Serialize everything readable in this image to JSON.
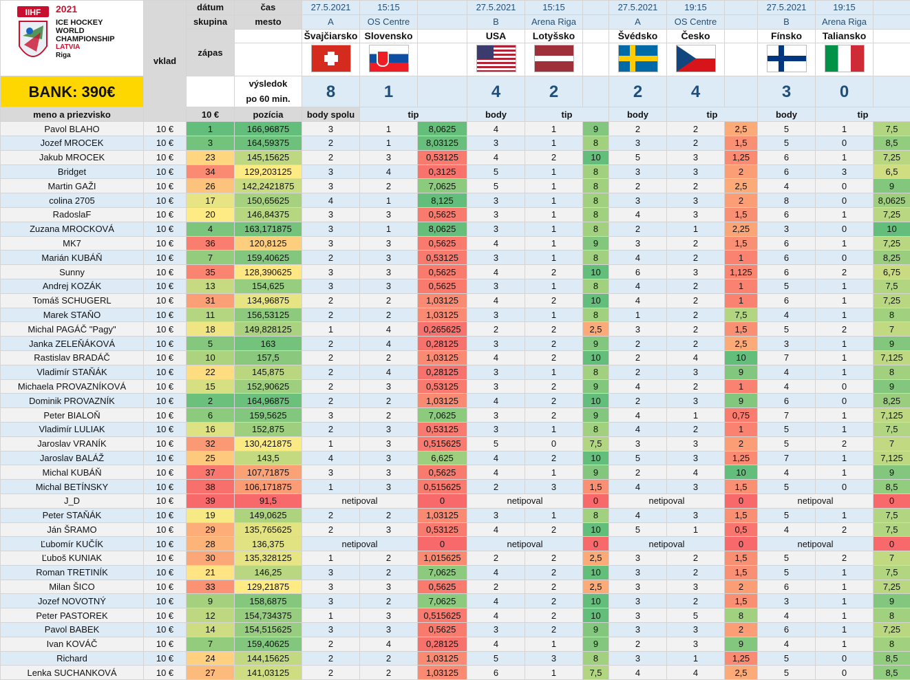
{
  "logo": {
    "iihf": "IIHF",
    "year": "2021",
    "line1": "ICE HOCKEY",
    "line2": "WORLD",
    "line3": "CHAMPIONSHIP",
    "line4": "LATVIA",
    "line5": "Riga"
  },
  "bank": "BANK: 390€",
  "headers": {
    "datum": "dátum",
    "cas": "čas",
    "skupina": "skupina",
    "mesto": "mesto",
    "vklad": "vklad",
    "zapas": "zápas",
    "vysledok": "výsledok",
    "po60": "po 60 min.",
    "meno": "meno a priezvisko",
    "vklad_val": "10 €",
    "pozicia": "pozícia",
    "body_spolu": "body spolu",
    "tip": "tip",
    "body": "body"
  },
  "matches": [
    {
      "date": "27.5.2021",
      "time": "15:15",
      "group": "A",
      "venue": "OS Centre",
      "home": "Švajčiarsko",
      "away": "Slovensko",
      "home_flag": "switzerland-flag",
      "away_flag": "slovakia-flag",
      "home_score": "8",
      "away_score": "1"
    },
    {
      "date": "27.5.2021",
      "time": "15:15",
      "group": "B",
      "venue": "Arena Riga",
      "home": "USA",
      "away": "Lotyšsko",
      "home_flag": "usa-flag",
      "away_flag": "latvia-flag",
      "home_score": "4",
      "away_score": "2"
    },
    {
      "date": "27.5.2021",
      "time": "19:15",
      "group": "A",
      "venue": "OS Centre",
      "home": "Švédsko",
      "away": "Česko",
      "home_flag": "sweden-flag",
      "away_flag": "czech-flag",
      "home_score": "2",
      "away_score": "4"
    },
    {
      "date": "27.5.2021",
      "time": "19:15",
      "group": "B",
      "venue": "Arena Riga",
      "home": "Fínsko",
      "away": "Taliansko",
      "home_flag": "finland-flag",
      "away_flag": "italy-flag",
      "home_score": "3",
      "away_score": "0"
    }
  ],
  "colors": {
    "pos_best": "#63be7b",
    "pos_mid": "#ffeb84",
    "pos_worst": "#f8696b",
    "header_blue": "#ddebf7",
    "bank_yellow": "#ffd700"
  },
  "rows": [
    {
      "name": "Pavol BLAHO",
      "vklad": "10 €",
      "pos": 1,
      "total": "166,96875",
      "t": [
        [
          "3",
          "1",
          "8,0625"
        ],
        [
          "4",
          "1",
          "9"
        ],
        [
          "2",
          "2",
          "2,5"
        ],
        [
          "5",
          "1",
          "7,5"
        ]
      ]
    },
    {
      "name": "Jozef MROCEK",
      "vklad": "10 €",
      "pos": 3,
      "total": "164,59375",
      "t": [
        [
          "2",
          "1",
          "8,03125"
        ],
        [
          "3",
          "1",
          "8"
        ],
        [
          "3",
          "2",
          "1,5"
        ],
        [
          "5",
          "0",
          "8,5"
        ]
      ]
    },
    {
      "name": "Jakub MROCEK",
      "vklad": "10 €",
      "pos": 23,
      "total": "145,15625",
      "t": [
        [
          "2",
          "3",
          "0,53125"
        ],
        [
          "4",
          "2",
          "10"
        ],
        [
          "5",
          "3",
          "1,25"
        ],
        [
          "6",
          "1",
          "7,25"
        ]
      ]
    },
    {
      "name": "Bridget",
      "vklad": "10 €",
      "pos": 34,
      "total": "129,203125",
      "t": [
        [
          "3",
          "4",
          "0,3125"
        ],
        [
          "5",
          "1",
          "8"
        ],
        [
          "3",
          "3",
          "2"
        ],
        [
          "6",
          "3",
          "6,5"
        ]
      ]
    },
    {
      "name": "Martin GAŽI",
      "vklad": "10 €",
      "pos": 26,
      "total": "142,2421875",
      "t": [
        [
          "3",
          "2",
          "7,0625"
        ],
        [
          "5",
          "1",
          "8"
        ],
        [
          "2",
          "2",
          "2,5"
        ],
        [
          "4",
          "0",
          "9"
        ]
      ]
    },
    {
      "name": "colina 2705",
      "vklad": "10 €",
      "pos": 17,
      "total": "150,65625",
      "t": [
        [
          "4",
          "1",
          "8,125"
        ],
        [
          "3",
          "1",
          "8"
        ],
        [
          "3",
          "3",
          "2"
        ],
        [
          "8",
          "0",
          "8,0625"
        ]
      ]
    },
    {
      "name": "RadoslaF",
      "vklad": "10 €",
      "pos": 20,
      "total": "146,84375",
      "t": [
        [
          "3",
          "3",
          "0,5625"
        ],
        [
          "3",
          "1",
          "8"
        ],
        [
          "4",
          "3",
          "1,5"
        ],
        [
          "6",
          "1",
          "7,25"
        ]
      ]
    },
    {
      "name": "Zuzana MROCKOVÁ",
      "vklad": "10 €",
      "pos": 4,
      "total": "163,171875",
      "t": [
        [
          "3",
          "1",
          "8,0625"
        ],
        [
          "3",
          "1",
          "8"
        ],
        [
          "2",
          "1",
          "2,25"
        ],
        [
          "3",
          "0",
          "10"
        ]
      ]
    },
    {
      "name": "MK7",
      "vklad": "10 €",
      "pos": 36,
      "total": "120,8125",
      "t": [
        [
          "3",
          "3",
          "0,5625"
        ],
        [
          "4",
          "1",
          "9"
        ],
        [
          "3",
          "2",
          "1,5"
        ],
        [
          "6",
          "1",
          "7,25"
        ]
      ]
    },
    {
      "name": "Marián KUBÁŇ",
      "vklad": "10 €",
      "pos": 7,
      "total": "159,40625",
      "t": [
        [
          "2",
          "3",
          "0,53125"
        ],
        [
          "3",
          "1",
          "8"
        ],
        [
          "4",
          "2",
          "1"
        ],
        [
          "6",
          "0",
          "8,25"
        ]
      ]
    },
    {
      "name": "Sunny",
      "vklad": "10 €",
      "pos": 35,
      "total": "128,390625",
      "t": [
        [
          "3",
          "3",
          "0,5625"
        ],
        [
          "4",
          "2",
          "10"
        ],
        [
          "6",
          "3",
          "1,125"
        ],
        [
          "6",
          "2",
          "6,75"
        ]
      ]
    },
    {
      "name": "Andrej KOZÁK",
      "vklad": "10 €",
      "pos": 13,
      "total": "154,625",
      "t": [
        [
          "3",
          "3",
          "0,5625"
        ],
        [
          "3",
          "1",
          "8"
        ],
        [
          "4",
          "2",
          "1"
        ],
        [
          "5",
          "1",
          "7,5"
        ]
      ]
    },
    {
      "name": "Tomáš SCHUGERL",
      "vklad": "10 €",
      "pos": 31,
      "total": "134,96875",
      "t": [
        [
          "2",
          "2",
          "1,03125"
        ],
        [
          "4",
          "2",
          "10"
        ],
        [
          "4",
          "2",
          "1"
        ],
        [
          "6",
          "1",
          "7,25"
        ]
      ]
    },
    {
      "name": "Marek STAŇO",
      "vklad": "10 €",
      "pos": 11,
      "total": "156,53125",
      "t": [
        [
          "2",
          "2",
          "1,03125"
        ],
        [
          "3",
          "1",
          "8"
        ],
        [
          "1",
          "2",
          "7,5"
        ],
        [
          "4",
          "1",
          "8"
        ]
      ]
    },
    {
      "name": "Michal PAGÁČ \"Pagy\"",
      "vklad": "10 €",
      "pos": 18,
      "total": "149,828125",
      "t": [
        [
          "1",
          "4",
          "0,265625"
        ],
        [
          "2",
          "2",
          "2,5"
        ],
        [
          "3",
          "2",
          "1,5"
        ],
        [
          "5",
          "2",
          "7"
        ]
      ]
    },
    {
      "name": "Janka ZELEŇÁKOVÁ",
      "vklad": "10 €",
      "pos": 5,
      "total": "163",
      "t": [
        [
          "2",
          "4",
          "0,28125"
        ],
        [
          "3",
          "2",
          "9"
        ],
        [
          "2",
          "2",
          "2,5"
        ],
        [
          "3",
          "1",
          "9"
        ]
      ]
    },
    {
      "name": "Rastislav BRADÁČ",
      "vklad": "10 €",
      "pos": 10,
      "total": "157,5",
      "t": [
        [
          "2",
          "2",
          "1,03125"
        ],
        [
          "4",
          "2",
          "10"
        ],
        [
          "2",
          "4",
          "10"
        ],
        [
          "7",
          "1",
          "7,125"
        ]
      ]
    },
    {
      "name": "Vladimír STAŇÁK",
      "vklad": "10 €",
      "pos": 22,
      "total": "145,875",
      "t": [
        [
          "2",
          "4",
          "0,28125"
        ],
        [
          "3",
          "1",
          "8"
        ],
        [
          "2",
          "3",
          "9"
        ],
        [
          "4",
          "1",
          "8"
        ]
      ]
    },
    {
      "name": "Michaela PROVAZNÍKOVÁ",
      "vklad": "10 €",
      "pos": 15,
      "total": "152,90625",
      "t": [
        [
          "2",
          "3",
          "0,53125"
        ],
        [
          "3",
          "2",
          "9"
        ],
        [
          "4",
          "2",
          "1"
        ],
        [
          "4",
          "0",
          "9"
        ]
      ]
    },
    {
      "name": "Dominik PROVAZNÍK",
      "vklad": "10 €",
      "pos": 2,
      "total": "164,96875",
      "t": [
        [
          "2",
          "2",
          "1,03125"
        ],
        [
          "4",
          "2",
          "10"
        ],
        [
          "2",
          "3",
          "9"
        ],
        [
          "6",
          "0",
          "8,25"
        ]
      ]
    },
    {
      "name": "Peter BIALOŇ",
      "vklad": "10 €",
      "pos": 6,
      "total": "159,5625",
      "t": [
        [
          "3",
          "2",
          "7,0625"
        ],
        [
          "3",
          "2",
          "9"
        ],
        [
          "4",
          "1",
          "0,75"
        ],
        [
          "7",
          "1",
          "7,125"
        ]
      ]
    },
    {
      "name": "Vladimír LULIAK",
      "vklad": "10 €",
      "pos": 16,
      "total": "152,875",
      "t": [
        [
          "2",
          "3",
          "0,53125"
        ],
        [
          "3",
          "1",
          "8"
        ],
        [
          "4",
          "2",
          "1"
        ],
        [
          "5",
          "1",
          "7,5"
        ]
      ]
    },
    {
      "name": "Jaroslav VRANÍK",
      "vklad": "10 €",
      "pos": 32,
      "total": "130,421875",
      "t": [
        [
          "1",
          "3",
          "0,515625"
        ],
        [
          "5",
          "0",
          "7,5"
        ],
        [
          "3",
          "3",
          "2"
        ],
        [
          "5",
          "2",
          "7"
        ]
      ]
    },
    {
      "name": "Jaroslav BALÁŽ",
      "vklad": "10 €",
      "pos": 25,
      "total": "143,5",
      "t": [
        [
          "4",
          "3",
          "6,625"
        ],
        [
          "4",
          "2",
          "10"
        ],
        [
          "5",
          "3",
          "1,25"
        ],
        [
          "7",
          "1",
          "7,125"
        ]
      ]
    },
    {
      "name": "Michal KUBÁŇ",
      "vklad": "10 €",
      "pos": 37,
      "total": "107,71875",
      "t": [
        [
          "3",
          "3",
          "0,5625"
        ],
        [
          "4",
          "1",
          "9"
        ],
        [
          "2",
          "4",
          "10"
        ],
        [
          "4",
          "1",
          "9"
        ]
      ]
    },
    {
      "name": "Michal BETÍNSKY",
      "vklad": "10 €",
      "pos": 38,
      "total": "106,171875",
      "t": [
        [
          "1",
          "3",
          "0,515625"
        ],
        [
          "2",
          "3",
          "1,5"
        ],
        [
          "4",
          "3",
          "1,5"
        ],
        [
          "5",
          "0",
          "8,5"
        ]
      ]
    },
    {
      "name": "J_D",
      "vklad": "10 €",
      "pos": 39,
      "total": "91,5",
      "t": [
        [
          "netipoval",
          "",
          "0"
        ],
        [
          "netipoval",
          "",
          "0"
        ],
        [
          "netipoval",
          "",
          "0"
        ],
        [
          "netipoval",
          "",
          "0"
        ]
      ]
    },
    {
      "name": "Peter STAŇÁK",
      "vklad": "10 €",
      "pos": 19,
      "total": "149,0625",
      "t": [
        [
          "2",
          "2",
          "1,03125"
        ],
        [
          "3",
          "1",
          "8"
        ],
        [
          "4",
          "3",
          "1,5"
        ],
        [
          "5",
          "1",
          "7,5"
        ]
      ]
    },
    {
      "name": "Ján ŠRAMO",
      "vklad": "10 €",
      "pos": 29,
      "total": "135,765625",
      "t": [
        [
          "2",
          "3",
          "0,53125"
        ],
        [
          "4",
          "2",
          "10"
        ],
        [
          "5",
          "1",
          "0,5"
        ],
        [
          "4",
          "2",
          "7,5"
        ]
      ]
    },
    {
      "name": "Ľubomír KUČÍK",
      "vklad": "10 €",
      "pos": 28,
      "total": "136,375",
      "t": [
        [
          "netipoval",
          "",
          "0"
        ],
        [
          "netipoval",
          "",
          "0"
        ],
        [
          "netipoval",
          "",
          "0"
        ],
        [
          "netipoval",
          "",
          "0"
        ]
      ]
    },
    {
      "name": "Ľuboš KUNIAK",
      "vklad": "10 €",
      "pos": 30,
      "total": "135,328125",
      "t": [
        [
          "1",
          "2",
          "1,015625"
        ],
        [
          "2",
          "2",
          "2,5"
        ],
        [
          "3",
          "2",
          "1,5"
        ],
        [
          "5",
          "2",
          "7"
        ]
      ]
    },
    {
      "name": "Roman TRETINÍK",
      "vklad": "10 €",
      "pos": 21,
      "total": "146,25",
      "t": [
        [
          "3",
          "2",
          "7,0625"
        ],
        [
          "4",
          "2",
          "10"
        ],
        [
          "3",
          "2",
          "1,5"
        ],
        [
          "5",
          "1",
          "7,5"
        ]
      ]
    },
    {
      "name": "Milan ŠICO",
      "vklad": "10 €",
      "pos": 33,
      "total": "129,21875",
      "t": [
        [
          "3",
          "3",
          "0,5625"
        ],
        [
          "2",
          "2",
          "2,5"
        ],
        [
          "3",
          "3",
          "2"
        ],
        [
          "6",
          "1",
          "7,25"
        ]
      ]
    },
    {
      "name": "Jozef NOVOTNÝ",
      "vklad": "10 €",
      "pos": 9,
      "total": "158,6875",
      "t": [
        [
          "3",
          "2",
          "7,0625"
        ],
        [
          "4",
          "2",
          "10"
        ],
        [
          "3",
          "2",
          "1,5"
        ],
        [
          "3",
          "1",
          "9"
        ]
      ]
    },
    {
      "name": "Peter PASTOREK",
      "vklad": "10 €",
      "pos": 12,
      "total": "154,734375",
      "t": [
        [
          "1",
          "3",
          "0,515625"
        ],
        [
          "4",
          "2",
          "10"
        ],
        [
          "3",
          "5",
          "8"
        ],
        [
          "4",
          "1",
          "8"
        ]
      ]
    },
    {
      "name": "Pavol BABEK",
      "vklad": "10 €",
      "pos": 14,
      "total": "154,515625",
      "t": [
        [
          "3",
          "3",
          "0,5625"
        ],
        [
          "3",
          "2",
          "9"
        ],
        [
          "3",
          "3",
          "2"
        ],
        [
          "6",
          "1",
          "7,25"
        ]
      ]
    },
    {
      "name": "Ivan KOVÁČ",
      "vklad": "10 €",
      "pos": 7,
      "total": "159,40625",
      "t": [
        [
          "2",
          "4",
          "0,28125"
        ],
        [
          "4",
          "1",
          "9"
        ],
        [
          "2",
          "3",
          "9"
        ],
        [
          "4",
          "1",
          "8"
        ]
      ]
    },
    {
      "name": "Richard",
      "vklad": "10 €",
      "pos": 24,
      "total": "144,15625",
      "t": [
        [
          "2",
          "2",
          "1,03125"
        ],
        [
          "5",
          "3",
          "8"
        ],
        [
          "3",
          "1",
          "1,25"
        ],
        [
          "5",
          "0",
          "8,5"
        ]
      ]
    },
    {
      "name": "Lenka SUCHANKOVÁ",
      "vklad": "10 €",
      "pos": 27,
      "total": "141,03125",
      "t": [
        [
          "2",
          "2",
          "1,03125"
        ],
        [
          "6",
          "1",
          "7,5"
        ],
        [
          "4",
          "4",
          "2,5"
        ],
        [
          "5",
          "0",
          "8,5"
        ]
      ]
    }
  ]
}
